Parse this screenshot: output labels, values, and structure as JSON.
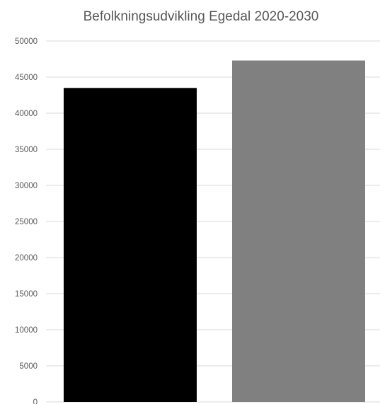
{
  "chart_data": {
    "type": "bar",
    "title": "Befolkningsudvikling Egedal 2020-2030",
    "xlabel": "",
    "ylabel": "",
    "categories": [
      "",
      ""
    ],
    "values": [
      43500,
      47300
    ],
    "colors": [
      "#000000",
      "#808080"
    ],
    "ylim": [
      0,
      50000
    ],
    "yticks": [
      "0",
      "5000",
      "10000",
      "15000",
      "20000",
      "25000",
      "30000",
      "35000",
      "40000",
      "45000",
      "50000"
    ],
    "grid": true,
    "legend": "none"
  }
}
